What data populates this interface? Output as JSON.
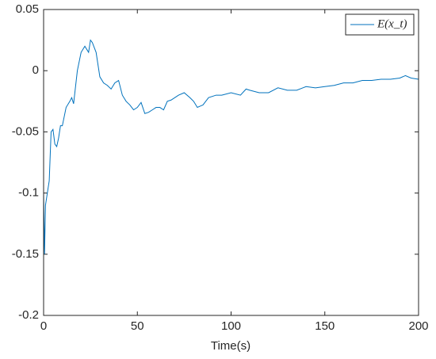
{
  "chart_data": {
    "type": "line",
    "xlabel": "Time(s)",
    "x": [
      0,
      0.5,
      1,
      2,
      3,
      4,
      5,
      6,
      7,
      8,
      9,
      10,
      12,
      14,
      15,
      16,
      18,
      20,
      22,
      24,
      25,
      26,
      28,
      30,
      32,
      34,
      36,
      38,
      40,
      42,
      44,
      46,
      48,
      50,
      52,
      54,
      56,
      58,
      60,
      62,
      64,
      66,
      68,
      70,
      72,
      75,
      78,
      80,
      82,
      85,
      88,
      92,
      95,
      100,
      105,
      108,
      110,
      115,
      120,
      125,
      130,
      135,
      140,
      145,
      150,
      155,
      160,
      165,
      170,
      175,
      180,
      185,
      190,
      193,
      196,
      200
    ],
    "series": [
      {
        "name": "E(x_t)",
        "color": "#0072bd",
        "values": [
          -0.1,
          -0.15,
          -0.11,
          -0.1,
          -0.09,
          -0.05,
          -0.048,
          -0.06,
          -0.062,
          -0.055,
          -0.045,
          -0.045,
          -0.03,
          -0.025,
          -0.022,
          -0.027,
          0,
          0.015,
          0.02,
          0.015,
          0.025,
          0.023,
          0.015,
          -0.005,
          -0.01,
          -0.012,
          -0.015,
          -0.01,
          -0.008,
          -0.02,
          -0.025,
          -0.028,
          -0.032,
          -0.03,
          -0.026,
          -0.035,
          -0.034,
          -0.032,
          -0.03,
          -0.03,
          -0.032,
          -0.025,
          -0.024,
          -0.022,
          -0.02,
          -0.018,
          -0.022,
          -0.025,
          -0.03,
          -0.028,
          -0.022,
          -0.02,
          -0.02,
          -0.018,
          -0.02,
          -0.015,
          -0.016,
          -0.018,
          -0.018,
          -0.014,
          -0.016,
          -0.016,
          -0.013,
          -0.014,
          -0.013,
          -0.012,
          -0.01,
          -0.01,
          -0.008,
          -0.008,
          -0.007,
          -0.007,
          -0.006,
          -0.004,
          -0.006,
          -0.007
        ]
      }
    ],
    "xlim": [
      0,
      200
    ],
    "xticks": [
      0,
      50,
      100,
      150,
      200
    ],
    "ylim": [
      -0.2,
      0.05
    ],
    "yticks": [
      -0.2,
      -0.15,
      -0.1,
      -0.05,
      0,
      0.05
    ],
    "grid": false,
    "legend": "northeast"
  }
}
